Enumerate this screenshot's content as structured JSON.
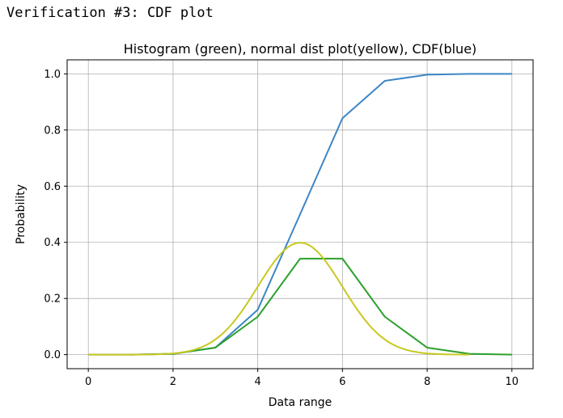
{
  "output_heading": "Verification #3: CDF plot",
  "chart_data": {
    "type": "line",
    "title": "Histogram (green), normal dist plot(yellow), CDF(blue)",
    "xlabel": "Data range",
    "ylabel": "Probability",
    "xlim": [
      -0.5,
      10.5
    ],
    "ylim": [
      -0.05,
      1.05
    ],
    "xticks": [
      0,
      2,
      4,
      6,
      8,
      10
    ],
    "yticks": [
      0.0,
      0.2,
      0.4,
      0.6,
      0.8,
      1.0
    ],
    "xtick_labels": [
      "0",
      "2",
      "4",
      "6",
      "8",
      "10"
    ],
    "ytick_labels": [
      "0.0",
      "0.2",
      "0.4",
      "0.6",
      "0.8",
      "1.0"
    ],
    "grid": true,
    "legend": "none",
    "series": [
      {
        "color": "#3d85c6",
        "x": [
          0,
          1,
          2,
          3,
          4,
          5,
          6,
          7,
          8,
          9,
          10
        ],
        "y": [
          0.0,
          0.0,
          0.003,
          0.025,
          0.16,
          0.5,
          0.842,
          0.975,
          0.997,
          1.0,
          1.0
        ]
      },
      {
        "color": "#2ca02c",
        "x": [
          1,
          2,
          3,
          4,
          5,
          6,
          7,
          8,
          9,
          10
        ],
        "y": [
          0.0,
          0.003,
          0.025,
          0.135,
          0.342,
          0.342,
          0.135,
          0.025,
          0.003,
          0.0
        ]
      },
      {
        "color": "#c8c820",
        "curve": "normal-pdf",
        "mean": 5,
        "sd": 1,
        "x_range": [
          0,
          9
        ],
        "samples": 91
      }
    ]
  }
}
